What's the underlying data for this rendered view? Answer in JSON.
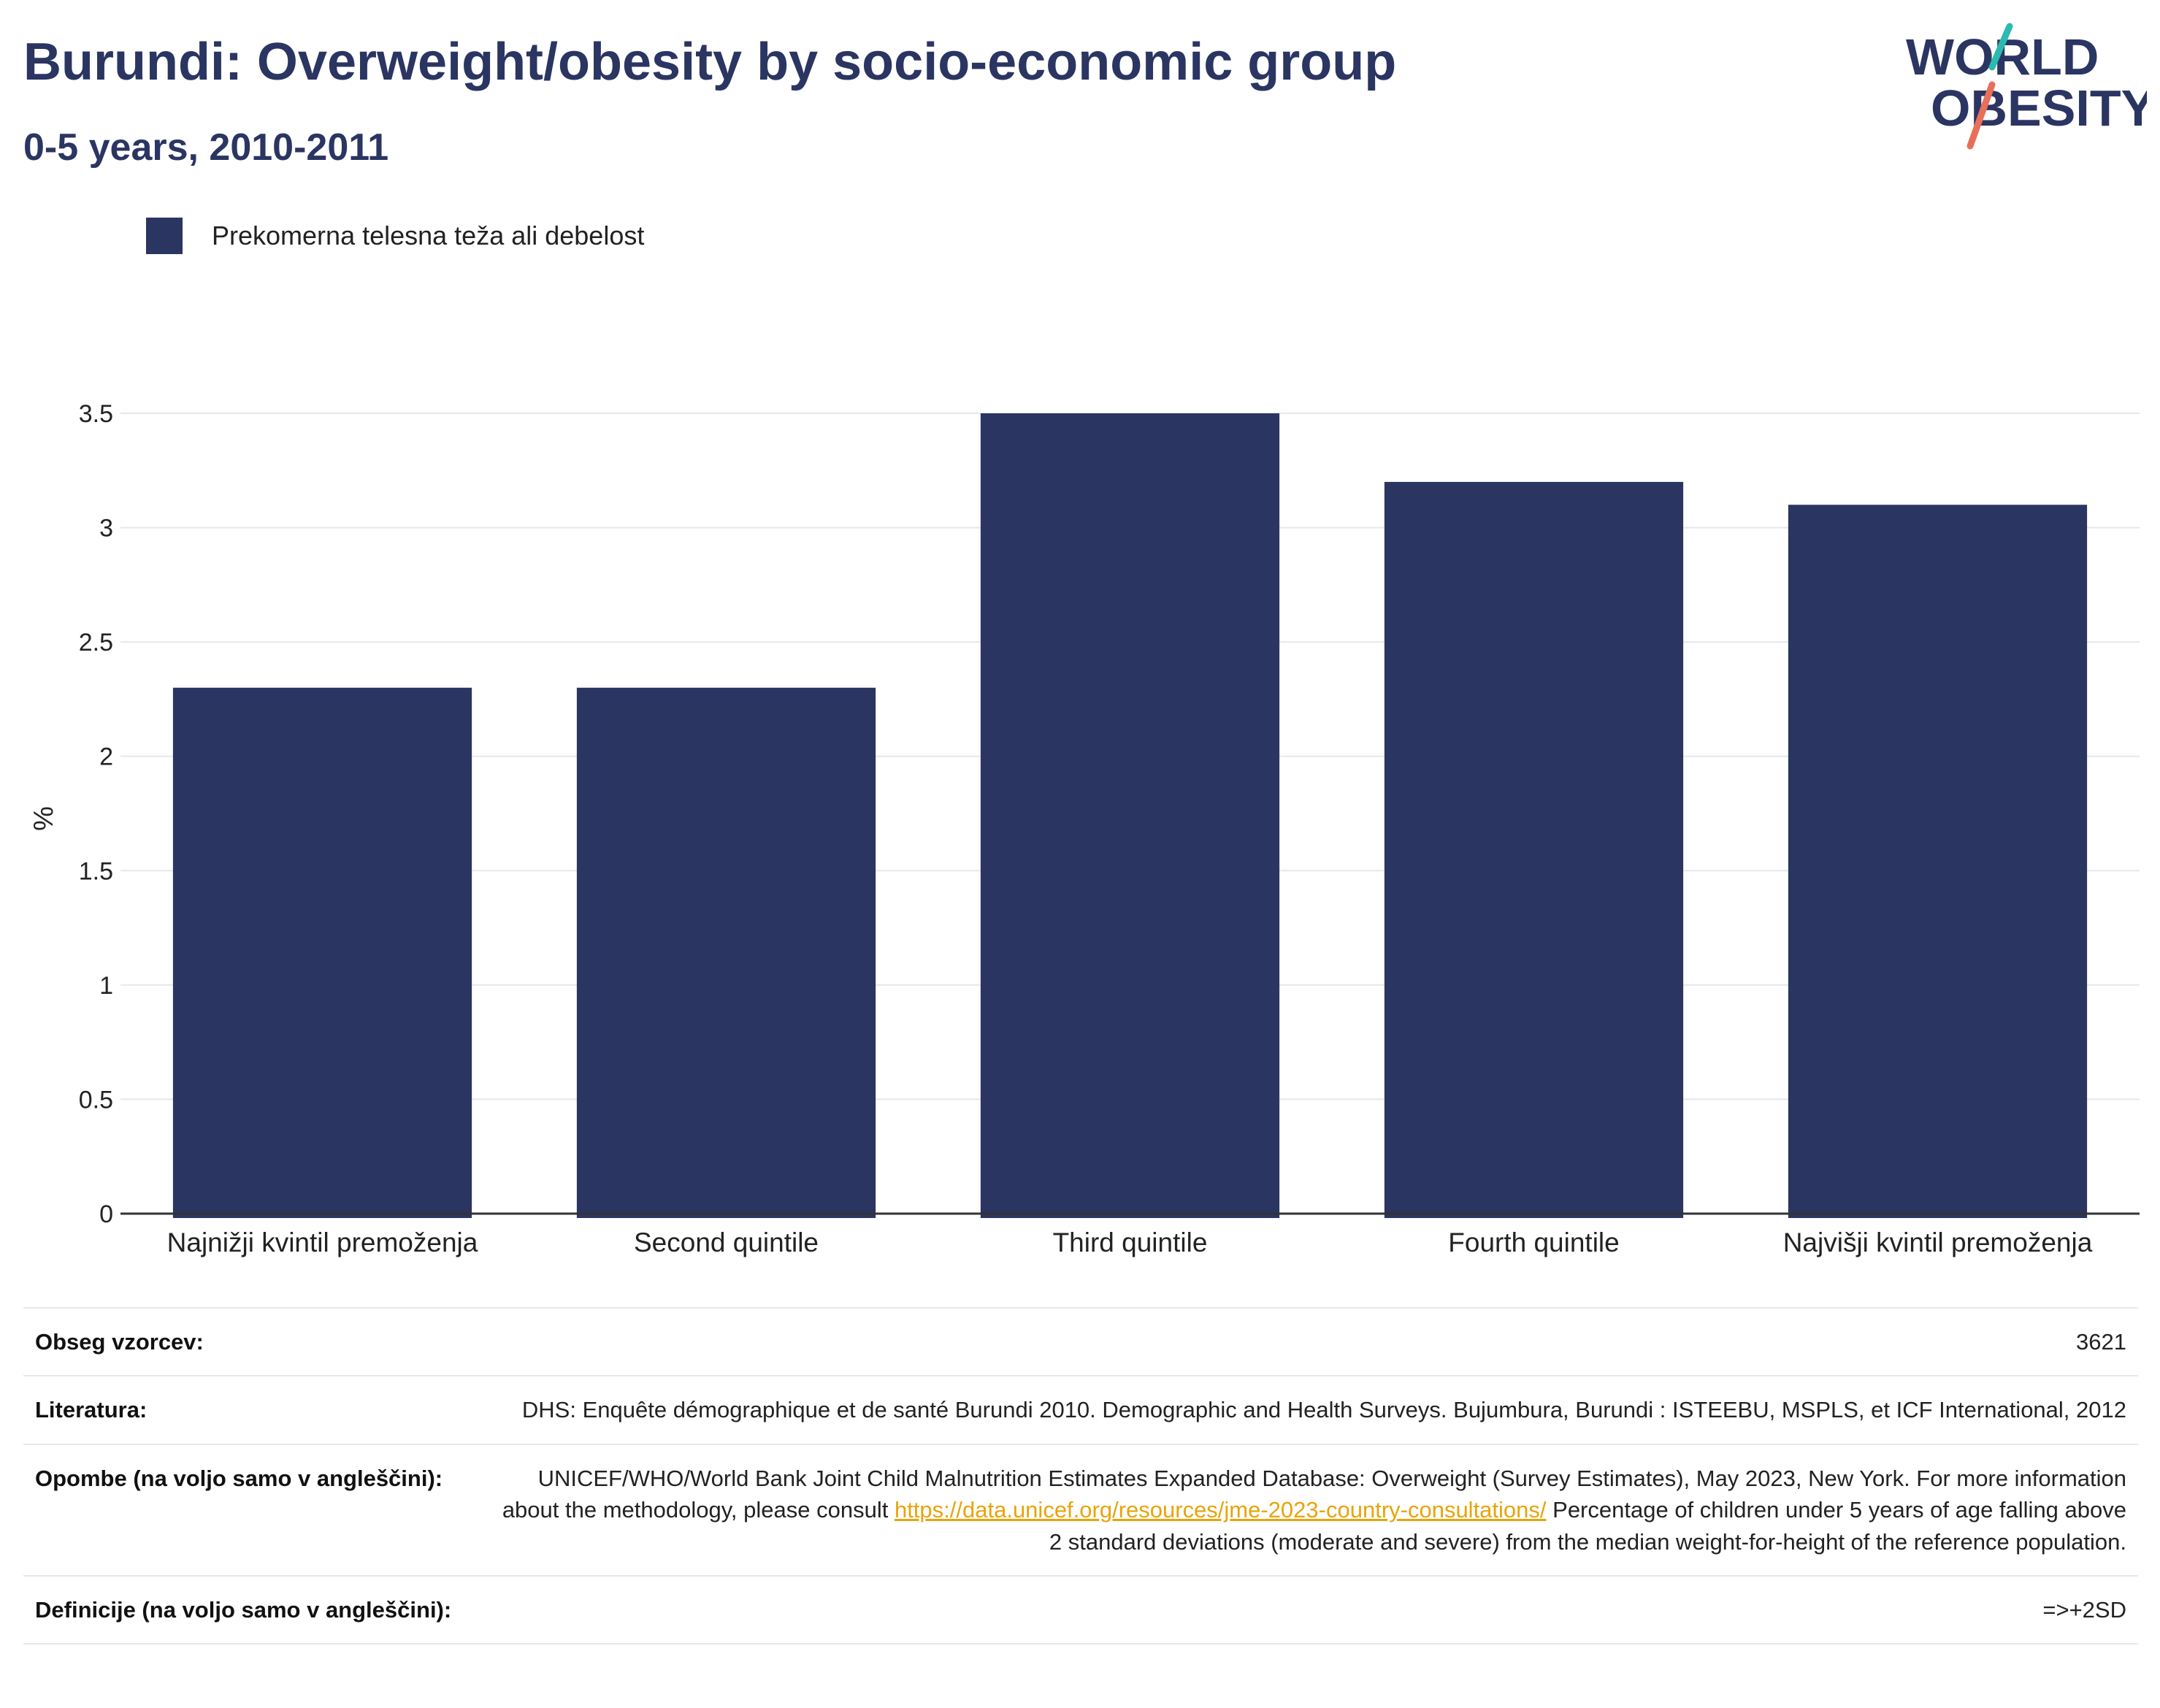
{
  "header": {
    "title": "Burundi: Overweight/obesity by socio-economic group",
    "subtitle": "0-5 years, 2010-2011"
  },
  "logo": {
    "line1": "WORLD",
    "line2": "OBESITY",
    "text_color": "#2b3562",
    "accent_teal": "#2bbab0",
    "accent_coral": "#e8705a"
  },
  "colors": {
    "bar": "#2b3562",
    "grid": "#e6e8ef",
    "axis": "#333333"
  },
  "chart_data": {
    "type": "bar",
    "categories": [
      "Najnižji kvintil premoženja",
      "Second quintile",
      "Third quintile",
      "Fourth quintile",
      "Najvišji kvintil premoženja"
    ],
    "series": [
      {
        "name": "Prekomerna telesna teža ali debelost",
        "values": [
          2.3,
          2.3,
          3.5,
          3.2,
          3.1
        ]
      }
    ],
    "ylabel": "%",
    "ylim": [
      0,
      3.5
    ],
    "yticks": [
      0,
      0.5,
      1,
      1.5,
      2,
      2.5,
      3,
      3.5
    ],
    "ytick_labels": [
      "0",
      "0.5",
      "1",
      "1.5",
      "2",
      "2.5",
      "3",
      "3.5"
    ],
    "grid": true,
    "legend_position": "top-left"
  },
  "metadata": [
    {
      "key": "Obseg vzorcev:",
      "value": "3621"
    },
    {
      "key": "Literatura:",
      "value": "DHS: Enquête démographique et de santé Burundi 2010. Demographic and Health Surveys. Bujumbura, Burundi : ISTEEBU, MSPLS, et ICF International, 2012"
    },
    {
      "key": "Opombe (na voljo samo v angleščini):",
      "value_pre": "UNICEF/WHO/World Bank Joint Child Malnutrition Estimates Expanded Database: Overweight (Survey Estimates), May 2023, New York. For more information about the methodology, please consult ",
      "link": "https://data.unicef.org/resources/jme-2023-country-consultations/",
      "value_post": " Percentage of children under 5 years of age falling above 2 standard deviations (moderate and severe) from the median weight-for-height of the reference population."
    },
    {
      "key": "Definicije (na voljo samo v angleščini):",
      "value": "=>+2SD"
    }
  ]
}
